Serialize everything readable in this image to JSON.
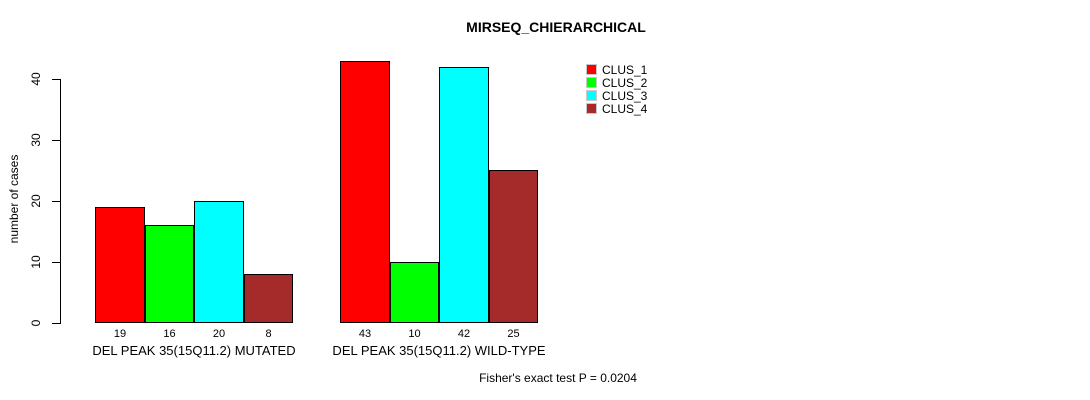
{
  "title": "MIRSEQ_CHIERARCHICAL",
  "footnote": "Fisher's exact test P = 0.0204",
  "y_axis": {
    "label": "number of cases",
    "ticks": [
      0,
      10,
      20,
      30,
      40
    ]
  },
  "legend": [
    {
      "label": "CLUS_1",
      "color": "#ff0000"
    },
    {
      "label": "CLUS_2",
      "color": "#00ff00"
    },
    {
      "label": "CLUS_3",
      "color": "#00ffff"
    },
    {
      "label": "CLUS_4",
      "color": "#a52a2a"
    }
  ],
  "chart_data": {
    "type": "bar",
    "title": "MIRSEQ_CHIERARCHICAL",
    "ylabel": "number of cases",
    "xlabel": "",
    "ylim": [
      0,
      45
    ],
    "grid": false,
    "legend_position": "top-right",
    "series_names": [
      "CLUS_1",
      "CLUS_2",
      "CLUS_3",
      "CLUS_4"
    ],
    "series_colors": [
      "#ff0000",
      "#00ff00",
      "#00ffff",
      "#a52a2a"
    ],
    "bar_border_color": "#000000",
    "groups": [
      {
        "label": "DEL PEAK 35(15Q11.2) MUTATED",
        "values": [
          19,
          16,
          20,
          8
        ]
      },
      {
        "label": "DEL PEAK 35(15Q11.2) WILD-TYPE",
        "values": [
          43,
          10,
          42,
          25
        ]
      }
    ],
    "annotation": "Fisher's exact test P = 0.0204"
  }
}
